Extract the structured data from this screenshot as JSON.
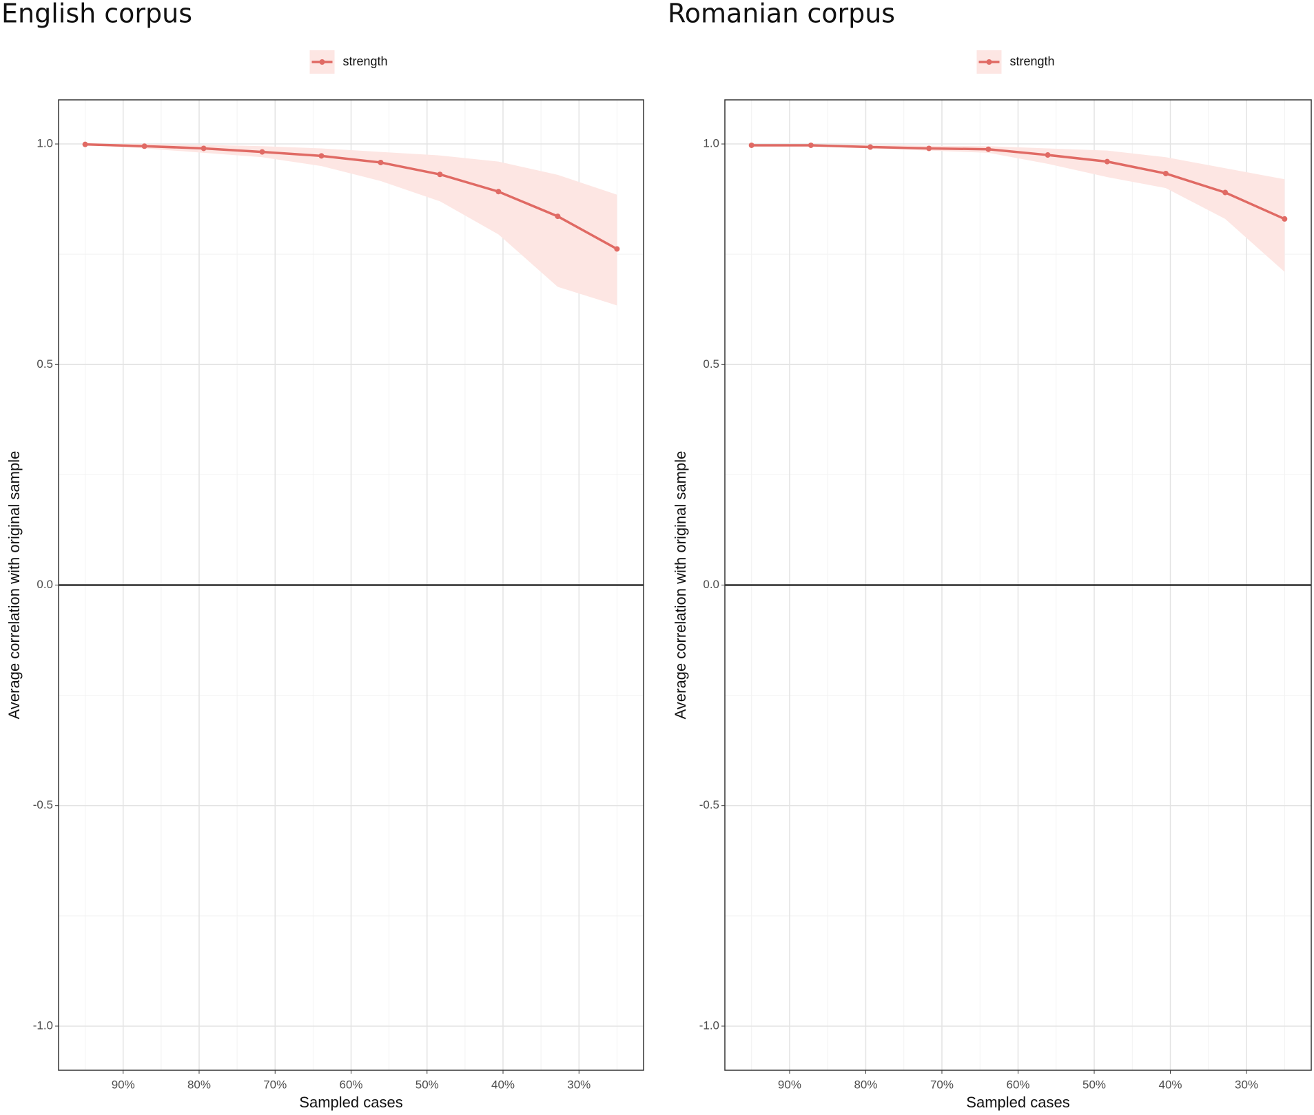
{
  "chart_data": [
    {
      "type": "line",
      "title": "English corpus",
      "x_label": "Sampled cases",
      "y_label": "Average correlation with original sample",
      "x": [
        95,
        87.2,
        79.4,
        71.7,
        63.9,
        56.1,
        48.3,
        40.6,
        32.8,
        25
      ],
      "series": [
        {
          "name": "strength",
          "color": "#e06a64",
          "band_color": "#fde6e3",
          "values": [
            0.999,
            0.995,
            0.99,
            0.982,
            0.973,
            0.958,
            0.931,
            0.892,
            0.836,
            0.762
          ],
          "upper": [
            1.0,
            1.0,
            0.998,
            0.995,
            0.99,
            0.982,
            0.974,
            0.96,
            0.93,
            0.885
          ],
          "lower": [
            0.998,
            0.99,
            0.98,
            0.97,
            0.95,
            0.916,
            0.87,
            0.795,
            0.676,
            0.634
          ]
        }
      ],
      "xlim": [
        98.5,
        21.5
      ],
      "xticks": [
        {
          "value": 90,
          "label": "90%"
        },
        {
          "value": 80,
          "label": "80%"
        },
        {
          "value": 70,
          "label": "70%"
        },
        {
          "value": 60,
          "label": "60%"
        },
        {
          "value": 50,
          "label": "50%"
        },
        {
          "value": 40,
          "label": "40%"
        },
        {
          "value": 30,
          "label": "30%"
        }
      ],
      "xminor": [
        95,
        85,
        75,
        65,
        55,
        45,
        35,
        25
      ],
      "ylim": [
        -1.1,
        1.1
      ],
      "yticks": [
        {
          "value": -1,
          "label": "-1.0"
        },
        -0.5,
        {
          "value": 0,
          "label": "0.0"
        },
        0.5,
        {
          "value": 1,
          "label": "1.0"
        }
      ],
      "yminor": [
        -0.75,
        -0.25,
        0.25,
        0.75
      ],
      "hline": 0,
      "grid": true,
      "legend": "top"
    },
    {
      "type": "line",
      "title": "Romanian corpus",
      "x_label": "Sampled cases",
      "y_label": "Average correlation with original sample",
      "x": [
        95,
        87.2,
        79.4,
        71.7,
        63.9,
        56.1,
        48.3,
        40.6,
        32.8,
        25
      ],
      "series": [
        {
          "name": "strength",
          "color": "#e06a64",
          "band_color": "#fde6e3",
          "values": [
            0.997,
            0.997,
            0.993,
            0.99,
            0.988,
            0.975,
            0.96,
            0.933,
            0.89,
            0.83
          ],
          "upper": [
            0.999,
            0.999,
            0.998,
            0.996,
            0.995,
            0.99,
            0.985,
            0.97,
            0.945,
            0.92
          ],
          "lower": [
            0.995,
            0.995,
            0.99,
            0.985,
            0.98,
            0.955,
            0.925,
            0.9,
            0.83,
            0.71
          ]
        }
      ],
      "xlim": [
        98.5,
        21.5
      ],
      "xticks": [
        {
          "value": 90,
          "label": "90%"
        },
        {
          "value": 80,
          "label": "80%"
        },
        {
          "value": 70,
          "label": "70%"
        },
        {
          "value": 60,
          "label": "60%"
        },
        {
          "value": 50,
          "label": "50%"
        },
        {
          "value": 40,
          "label": "40%"
        },
        {
          "value": 30,
          "label": "30%"
        }
      ],
      "xminor": [
        95,
        85,
        75,
        65,
        55,
        45,
        35,
        25
      ],
      "ylim": [
        -1.1,
        1.1
      ],
      "yticks": [
        {
          "value": -1,
          "label": "-1.0"
        },
        -0.5,
        {
          "value": 0,
          "label": "0.0"
        },
        0.5,
        {
          "value": 1,
          "label": "1.0"
        }
      ],
      "yminor": [
        -0.75,
        -0.25,
        0.25,
        0.75
      ],
      "hline": 0,
      "grid": true,
      "legend": "top"
    }
  ]
}
